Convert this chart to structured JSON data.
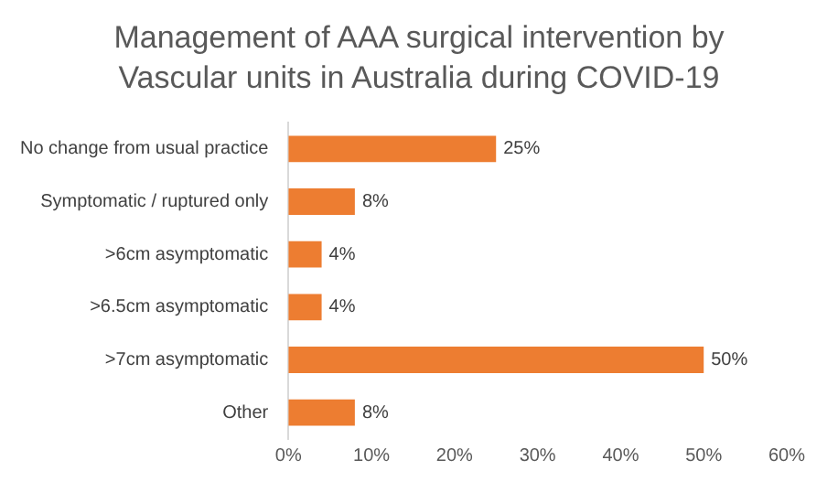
{
  "chart_data": {
    "type": "bar",
    "orientation": "horizontal",
    "title": "Management of AAA surgical intervention by Vascular units in Australia during COVID-19",
    "categories": [
      "No change from usual practice",
      "Symptomatic / ruptured only",
      ">6cm asymptomatic",
      ">6.5cm asymptomatic",
      ">7cm asymptomatic",
      "Other"
    ],
    "values": [
      25,
      8,
      4,
      4,
      50,
      8
    ],
    "value_labels": [
      "25%",
      "8%",
      "4%",
      "4%",
      "50%",
      "8%"
    ],
    "color": "#ed7d31",
    "xlim": [
      0,
      60
    ],
    "xticks": [
      {
        "value": 0,
        "label": "0%"
      },
      {
        "value": 10,
        "label": "10%"
      },
      {
        "value": 20,
        "label": "20%"
      },
      {
        "value": 30,
        "label": "30%"
      },
      {
        "value": 40,
        "label": "40%"
      },
      {
        "value": 50,
        "label": "50%"
      },
      {
        "value": 60,
        "label": "60%"
      }
    ],
    "grid": false,
    "legend": false
  }
}
